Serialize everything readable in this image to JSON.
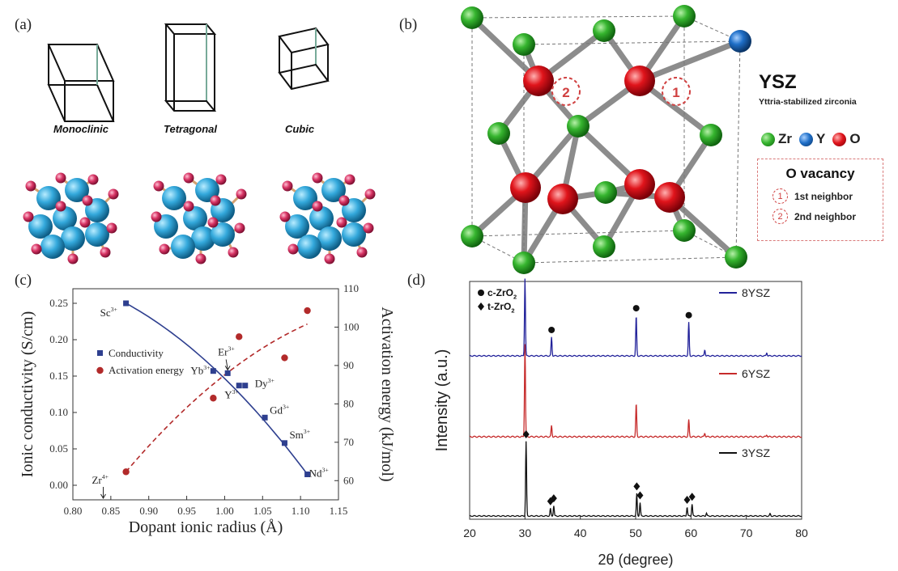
{
  "panel_a": {
    "label": "(a)",
    "structures": [
      "Monoclinic",
      "Tetragonal",
      "Cubic"
    ]
  },
  "panel_b": {
    "label": "(b)",
    "title": "YSZ",
    "subtitle": "Yttria-stabilized zirconia",
    "legend": [
      {
        "symbol": "Zr",
        "color": "#2fae2f"
      },
      {
        "symbol": "Y",
        "color": "#1f6fc8"
      },
      {
        "symbol": "O",
        "color": "#e0141b"
      }
    ],
    "vacancy_title": "O vacancy",
    "vacancy_items": [
      {
        "num": "1",
        "text": "1st neighbor"
      },
      {
        "num": "2",
        "text": "2nd neighbor"
      }
    ]
  },
  "panel_c": {
    "label": "(c)",
    "xlabel": "Dopant ionic radius (Å)",
    "ylabel_left": "Ionic conductivity (S/cm)",
    "ylabel_right": "Activation energy (kJ/mol)",
    "legend": [
      "Conductivity",
      "Activation energy"
    ],
    "zr_label": "Zr",
    "zr_sup": "4+"
  },
  "panel_d": {
    "label": "(d)",
    "xlabel": "2θ (degree)",
    "ylabel": "Intensity (a.u.)",
    "legend_c": "c-ZrO",
    "legend_t": "t-ZrO",
    "sub2": "2"
  },
  "chart_data": [
    {
      "type": "scatter",
      "panel": "c",
      "xlim": [
        0.8,
        1.15
      ],
      "xticks": [
        "0.80",
        "0.85",
        "0.90",
        "0.95",
        "1.00",
        "1.05",
        "1.10",
        "1.15"
      ],
      "ylim_left": [
        -0.02,
        0.27
      ],
      "yticks_left": [
        "0.00",
        "0.05",
        "0.10",
        "0.15",
        "0.20",
        "0.25"
      ],
      "ylim_right": [
        55,
        110
      ],
      "yticks_right": [
        "60",
        "70",
        "80",
        "90",
        "100",
        "110"
      ],
      "series": [
        {
          "name": "Conductivity",
          "axis": "left",
          "color": "#2e3f8f",
          "marker": "square",
          "points": [
            {
              "label": "Sc",
              "sup": "3+",
              "x": 0.87,
              "y": 0.25
            },
            {
              "label": "Yb",
              "sup": "3+",
              "x": 0.985,
              "y": 0.157
            },
            {
              "label": "Er",
              "sup": "3+",
              "x": 1.004,
              "y": 0.154
            },
            {
              "label": "Y",
              "sup": "3+",
              "x": 1.019,
              "y": 0.137
            },
            {
              "label": "Dy",
              "sup": "3+",
              "x": 1.027,
              "y": 0.137
            },
            {
              "label": "Gd",
              "sup": "3+",
              "x": 1.053,
              "y": 0.093
            },
            {
              "label": "Sm",
              "sup": "3+",
              "x": 1.079,
              "y": 0.058
            },
            {
              "label": "Nd",
              "sup": "3+",
              "x": 1.109,
              "y": 0.015
            }
          ]
        },
        {
          "name": "Activation energy",
          "axis": "right",
          "color": "#b22a2a",
          "marker": "circle",
          "points": [
            {
              "x": 0.87,
              "y": 62.3
            },
            {
              "x": 0.985,
              "y": 81.5
            },
            {
              "x": 1.019,
              "y": 97.5
            },
            {
              "x": 1.079,
              "y": 92.0
            },
            {
              "x": 1.109,
              "y": 104.3
            }
          ]
        }
      ],
      "zr_marker_x": 0.84
    },
    {
      "type": "line",
      "panel": "d",
      "xlim": [
        20,
        80
      ],
      "xticks": [
        "20",
        "30",
        "40",
        "50",
        "60",
        "70",
        "80"
      ],
      "series": [
        {
          "name": "8YSZ",
          "color": "#22229a",
          "peaks": [
            {
              "x": 30.0,
              "h": 1.0,
              "marker": "circle"
            },
            {
              "x": 34.8,
              "h": 0.24,
              "marker": "circle"
            },
            {
              "x": 50.1,
              "h": 0.52,
              "marker": "circle"
            },
            {
              "x": 59.6,
              "h": 0.43,
              "marker": "circle"
            },
            {
              "x": 62.5,
              "h": 0.08
            },
            {
              "x": 73.7,
              "h": 0.04
            }
          ]
        },
        {
          "name": "6YSZ",
          "color": "#c62a2a",
          "peaks": [
            {
              "x": 30.0,
              "h": 1.0
            },
            {
              "x": 34.8,
              "h": 0.12
            },
            {
              "x": 50.1,
              "h": 0.36
            },
            {
              "x": 59.6,
              "h": 0.18
            },
            {
              "x": 62.5,
              "h": 0.04
            },
            {
              "x": 73.7,
              "h": 0.02
            }
          ]
        },
        {
          "name": "3YSZ",
          "color": "#111111",
          "peaks": [
            {
              "x": 30.2,
              "h": 1.0,
              "marker": "diamond"
            },
            {
              "x": 34.6,
              "h": 0.1,
              "marker": "diamond"
            },
            {
              "x": 35.2,
              "h": 0.14,
              "marker": "diamond"
            },
            {
              "x": 50.2,
              "h": 0.3,
              "marker": "diamond"
            },
            {
              "x": 50.8,
              "h": 0.18,
              "marker": "diamond"
            },
            {
              "x": 59.3,
              "h": 0.12,
              "marker": "diamond"
            },
            {
              "x": 60.2,
              "h": 0.16,
              "marker": "diamond"
            },
            {
              "x": 62.8,
              "h": 0.04
            },
            {
              "x": 74.3,
              "h": 0.03
            }
          ]
        }
      ]
    }
  ]
}
